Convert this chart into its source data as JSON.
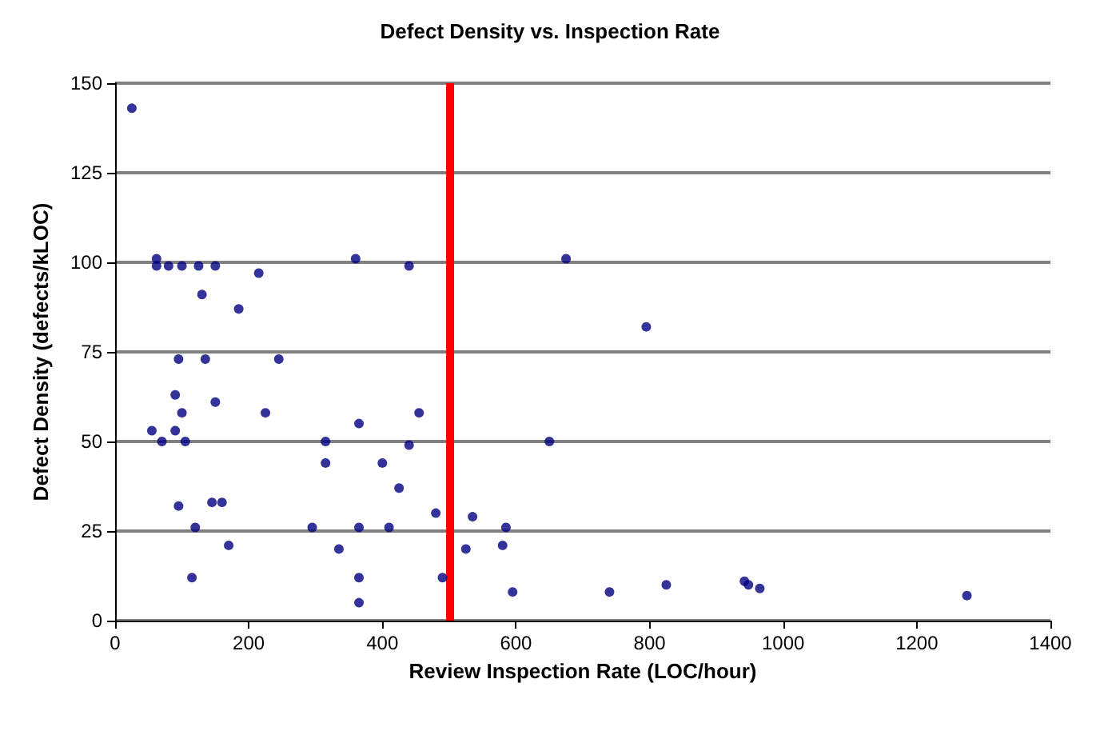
{
  "chart_data": {
    "type": "scatter",
    "title": "Defect Density vs. Inspection Rate",
    "xlabel": "Review Inspection Rate (LOC/hour)",
    "ylabel": "Defect Density (defects/kLOC)",
    "x": [
      25,
      62,
      62,
      80,
      100,
      125,
      150,
      215,
      360,
      440,
      675,
      795,
      130,
      185,
      245,
      95,
      135,
      90,
      150,
      100,
      225,
      455,
      365,
      55,
      90,
      70,
      105,
      315,
      650,
      440,
      400,
      315,
      425,
      480,
      535,
      585,
      295,
      365,
      410,
      120,
      95,
      145,
      160,
      170,
      580,
      525,
      335,
      115,
      365,
      490,
      595,
      365,
      740,
      825,
      942,
      948,
      965,
      1275
    ],
    "series": [
      {
        "color": "#000080",
        "values": [
          143,
          101,
          99,
          99,
          99,
          99,
          99,
          97,
          101,
          99,
          101,
          82,
          91,
          87,
          73,
          73,
          73,
          63,
          61,
          58,
          58,
          58,
          55,
          53,
          53,
          50,
          50,
          50,
          50,
          49,
          44,
          44,
          37,
          30,
          29,
          26,
          26,
          26,
          26,
          26,
          32,
          33,
          33,
          21,
          21,
          20,
          20,
          12,
          12,
          12,
          8,
          5,
          8,
          10,
          11,
          10,
          9,
          7
        ]
      }
    ],
    "xlim": [
      0,
      1400
    ],
    "xticks": [
      0,
      200,
      400,
      600,
      800,
      1000,
      1200,
      1400
    ],
    "ylim": [
      0,
      150
    ],
    "yticks": [
      0,
      25,
      50,
      75,
      100,
      125,
      150
    ],
    "grid": "y",
    "marker": "circle",
    "ref_lines": [
      {
        "axis": "x",
        "value": 500,
        "color": "#ff0000"
      }
    ]
  }
}
